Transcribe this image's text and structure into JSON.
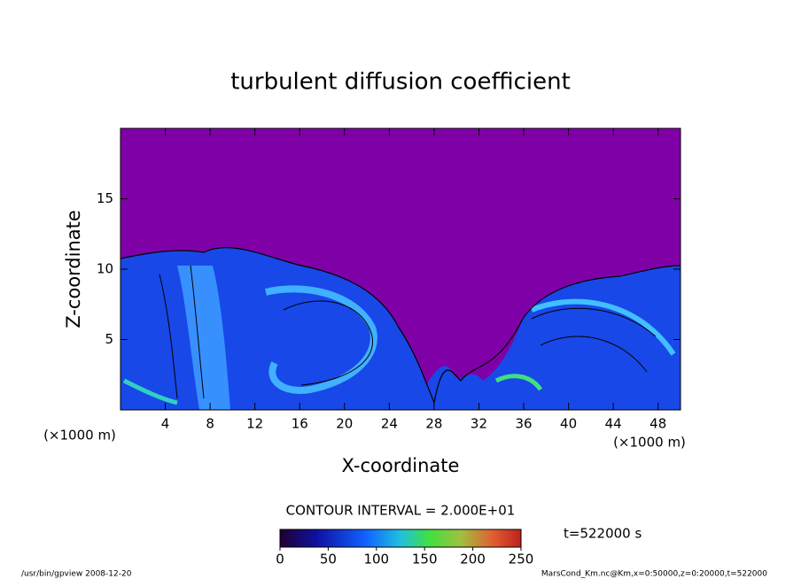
{
  "chart_data": {
    "type": "heatmap",
    "title": "turbulent diffusion coefficient",
    "x_label": "X-coordinate",
    "y_label": "Z-coordinate",
    "x_unit_label": "(×1000 m)",
    "xlim": [
      0,
      50
    ],
    "xticks": [
      4,
      8,
      12,
      16,
      20,
      24,
      28,
      32,
      36,
      40,
      44,
      48
    ],
    "ylim": [
      0,
      20
    ],
    "yticks": [
      5,
      10,
      15
    ],
    "contour_interval": "CONTOUR INTERVAL = 2.000E+01",
    "time_label": "t=522000 s",
    "colorbar": {
      "clim": [
        0,
        250
      ],
      "ticks": [
        0,
        50,
        100,
        150,
        200,
        250
      ]
    },
    "footer_left": "/usr/bin/gpview   2008-12-20",
    "footer_right": "MarsCond_Km.nc@Km,x=0:50000,z=0:20000,t=522000"
  }
}
